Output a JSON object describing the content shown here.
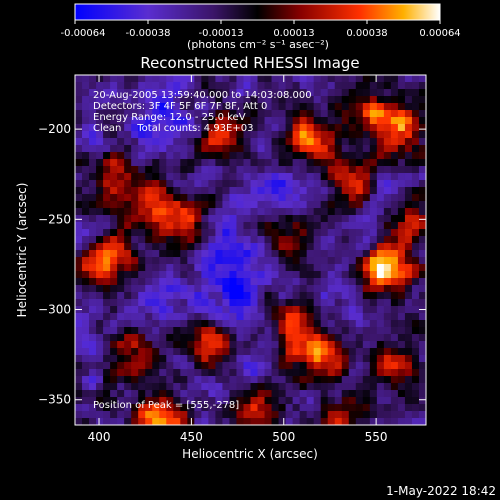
{
  "chart_data": {
    "type": "heatmap",
    "title": "Reconstructed RHESSI Image",
    "xlabel": "Heliocentric X (arcsec)",
    "ylabel": "Heliocentric Y (arcsec)",
    "xlim": [
      387,
      577
    ],
    "ylim": [
      -364,
      -170
    ],
    "xticks": [
      400,
      450,
      500,
      550
    ],
    "yticks": [
      -200,
      -250,
      -300,
      -350
    ],
    "colorbar": {
      "min": -0.00064,
      "max": 0.00064,
      "tick_labels": [
        "-0.00064",
        "-0.00038",
        "-0.00013",
        "0.00013",
        "0.00038",
        "0.00064"
      ],
      "unit_label": "(photons cm⁻² s⁻¹ asec⁻²)",
      "colors": [
        "#0000ff",
        "#5a2dd0",
        "#3b1568",
        "#000000",
        "#8a0000",
        "#ff3000",
        "#ffb000",
        "#ffffff"
      ]
    },
    "annotations": [
      "20-Aug-2005 13:59:40.000 to 14:03:08.000",
      "Detectors: 3F 4F 5F 6F 7F 8F, Att 0",
      "Energy Range: 12.0 - 25.0 keV",
      "Clean     Total counts: 4.93E+03"
    ],
    "position_label": "Position of Peak = [555,-278]",
    "footer_date": "1-May-2022 18:42",
    "hotspots": [
      {
        "x": 404,
        "y": -272,
        "intensity": 0.85
      },
      {
        "x": 408,
        "y": -228,
        "intensity": 0.6
      },
      {
        "x": 432,
        "y": -243,
        "intensity": 0.7
      },
      {
        "x": 450,
        "y": -254,
        "intensity": 0.55
      },
      {
        "x": 434,
        "y": -360,
        "intensity": 0.8
      },
      {
        "x": 468,
        "y": -205,
        "intensity": 0.55
      },
      {
        "x": 515,
        "y": -205,
        "intensity": 0.7
      },
      {
        "x": 535,
        "y": -230,
        "intensity": 0.65
      },
      {
        "x": 505,
        "y": -260,
        "intensity": 0.5
      },
      {
        "x": 555,
        "y": -278,
        "intensity": 1.0
      },
      {
        "x": 563,
        "y": -200,
        "intensity": 0.75
      },
      {
        "x": 520,
        "y": -325,
        "intensity": 0.85
      },
      {
        "x": 505,
        "y": -308,
        "intensity": 0.6
      },
      {
        "x": 460,
        "y": -320,
        "intensity": 0.6
      },
      {
        "x": 420,
        "y": -325,
        "intensity": 0.45
      },
      {
        "x": 560,
        "y": -330,
        "intensity": 0.55
      },
      {
        "x": 485,
        "y": -355,
        "intensity": 0.5
      },
      {
        "x": 530,
        "y": -360,
        "intensity": 0.45
      },
      {
        "x": 570,
        "y": -250,
        "intensity": 0.55
      },
      {
        "x": 545,
        "y": -190,
        "intensity": 0.5
      }
    ],
    "coldspots": [
      {
        "x": 468,
        "y": -263,
        "intensity": 0.8
      },
      {
        "x": 475,
        "y": -290,
        "intensity": 0.7
      },
      {
        "x": 440,
        "y": -295,
        "intensity": 0.6
      },
      {
        "x": 500,
        "y": -240,
        "intensity": 0.55
      },
      {
        "x": 430,
        "y": -200,
        "intensity": 0.5
      },
      {
        "x": 555,
        "y": -240,
        "intensity": 0.45
      },
      {
        "x": 535,
        "y": -300,
        "intensity": 0.5
      },
      {
        "x": 475,
        "y": -340,
        "intensity": 0.45
      }
    ]
  }
}
